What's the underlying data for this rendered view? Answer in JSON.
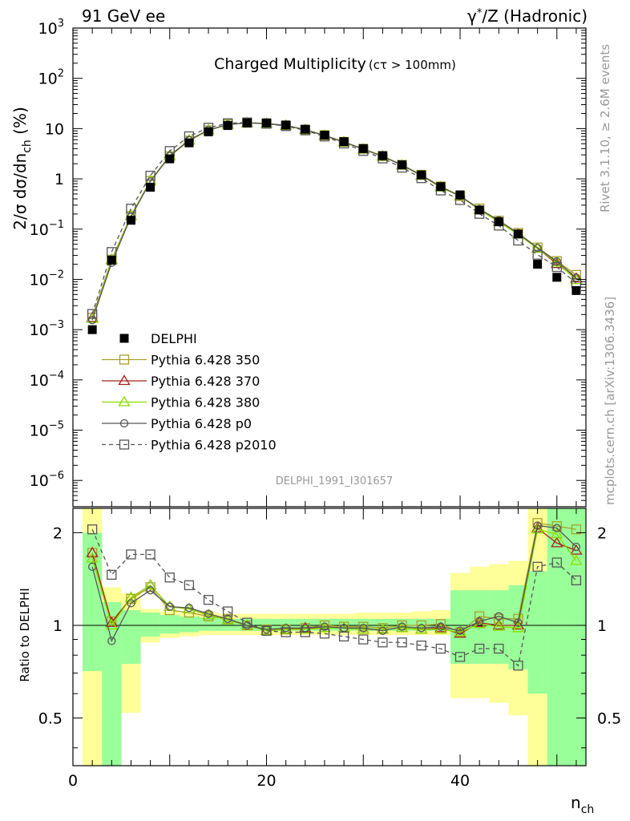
{
  "header": {
    "left": "91 GeV ee",
    "right_prefix": "γ",
    "right_sup": "*",
    "right_suffix": "/Z (Hadronic)"
  },
  "plot_title": {
    "main": "Charged Multiplicity",
    "cut": "(cτ > 100mm)"
  },
  "ylabel_main": {
    "prefix": "2/σ dσ/dn",
    "sub": "ch",
    "suffix": " (%)"
  },
  "ylabel_ratio": "Ratio to DELPHI",
  "xlabel": {
    "main": "n",
    "sub": "ch"
  },
  "analysis_id": "DELPHI_1991_I301657",
  "side_text": {
    "rivet": "Rivet 3.1.10, ≥ 2.6M events",
    "mcplots": "mcplots.cern.ch [arXiv:1306.3436]"
  },
  "y_ticks_main": [
    {
      "value": 1000,
      "base": "10",
      "exp": "3"
    },
    {
      "value": 100,
      "base": "10",
      "exp": "2"
    },
    {
      "value": 10,
      "base": "10",
      "exp": ""
    },
    {
      "value": 1,
      "base": "1",
      "exp": ""
    },
    {
      "value": 0.1,
      "base": "10",
      "exp": "−1"
    },
    {
      "value": 0.01,
      "base": "10",
      "exp": "−2"
    },
    {
      "value": 0.001,
      "base": "10",
      "exp": "−3"
    },
    {
      "value": 0.0001,
      "base": "10",
      "exp": "−4"
    },
    {
      "value": 1e-05,
      "base": "10",
      "exp": "−5"
    },
    {
      "value": 1e-06,
      "base": "10",
      "exp": "−6"
    }
  ],
  "y_ticks_ratio": [
    {
      "value": 2,
      "label": "2"
    },
    {
      "value": 1,
      "label": "1"
    },
    {
      "value": 0.5,
      "label": "0.5"
    }
  ],
  "x_ticks": [
    {
      "value": 0,
      "label": "0"
    },
    {
      "value": 20,
      "label": "20"
    },
    {
      "value": 40,
      "label": "40"
    }
  ],
  "chart_data": {
    "type": "line",
    "x_axis": {
      "label": "n_ch",
      "range": [
        0,
        53
      ]
    },
    "main_panel": {
      "scale": "log",
      "ylabel": "2/σ dσ/dn_ch (%)",
      "ylim": [
        3e-07,
        1000
      ]
    },
    "ratio_panel": {
      "scale": "log",
      "ylabel": "Ratio to DELPHI",
      "ylim": [
        0.35,
        2.4
      ]
    },
    "x": [
      2,
      4,
      6,
      8,
      10,
      12,
      14,
      16,
      18,
      20,
      22,
      24,
      26,
      28,
      30,
      32,
      34,
      36,
      38,
      40,
      42,
      44,
      46,
      48,
      50,
      52
    ],
    "legend_position": "middle-left",
    "data_series": {
      "name": "DELPHI",
      "values": [
        0.001,
        0.024,
        0.15,
        0.68,
        2.5,
        5.2,
        8.6,
        11.5,
        13.0,
        13.0,
        11.8,
        9.7,
        7.4,
        5.5,
        4.0,
        2.9,
        1.9,
        1.2,
        0.7,
        0.48,
        0.24,
        0.14,
        0.08,
        0.02,
        0.011,
        0.006
      ]
    },
    "band_edges": [
      1,
      3,
      5,
      7,
      9,
      11,
      13,
      15,
      17,
      19,
      21,
      23,
      25,
      27,
      29,
      31,
      33,
      35,
      37,
      39,
      41,
      43,
      45,
      47,
      49,
      51,
      53
    ],
    "band_green": [
      [
        0.71,
        2.0
      ],
      [
        0.3,
        1.19
      ],
      [
        0.75,
        1.12
      ],
      [
        0.92,
        1.1
      ],
      [
        0.94,
        1.08
      ],
      [
        0.95,
        1.07
      ],
      [
        0.96,
        1.06
      ],
      [
        0.96,
        1.05
      ],
      [
        0.96,
        1.05
      ],
      [
        0.96,
        1.05
      ],
      [
        0.96,
        1.05
      ],
      [
        0.96,
        1.05
      ],
      [
        0.96,
        1.05
      ],
      [
        0.96,
        1.05
      ],
      [
        0.96,
        1.05
      ],
      [
        0.96,
        1.05
      ],
      [
        0.96,
        1.05
      ],
      [
        0.96,
        1.05
      ],
      [
        0.96,
        1.05
      ],
      [
        0.75,
        1.3
      ],
      [
        0.75,
        1.3
      ],
      [
        0.75,
        1.3
      ],
      [
        0.72,
        1.35
      ],
      [
        0.6,
        1.5
      ],
      [
        0.3,
        2.8
      ],
      [
        0.3,
        2.8
      ]
    ],
    "band_yellow": [
      [
        0.3,
        2.8
      ],
      [
        0.3,
        1.33
      ],
      [
        0.52,
        1.27
      ],
      [
        0.88,
        1.13
      ],
      [
        0.91,
        1.11
      ],
      [
        0.92,
        1.1
      ],
      [
        0.93,
        1.1
      ],
      [
        0.93,
        1.09
      ],
      [
        0.93,
        1.09
      ],
      [
        0.93,
        1.09
      ],
      [
        0.93,
        1.09
      ],
      [
        0.93,
        1.09
      ],
      [
        0.93,
        1.09
      ],
      [
        0.93,
        1.09
      ],
      [
        0.93,
        1.1
      ],
      [
        0.93,
        1.1
      ],
      [
        0.93,
        1.1
      ],
      [
        0.93,
        1.11
      ],
      [
        0.93,
        1.12
      ],
      [
        0.58,
        1.48
      ],
      [
        0.58,
        1.55
      ],
      [
        0.56,
        1.58
      ],
      [
        0.51,
        1.62
      ],
      [
        0.3,
        2.8
      ],
      [
        0.3,
        2.8
      ],
      [
        0.3,
        2.8
      ]
    ],
    "series": [
      {
        "name": "Pythia 6.428 350",
        "color": "#a8a02a",
        "marker": "square-open",
        "dashed": false,
        "ratio": [
          1.72,
          1.03,
          1.22,
          1.33,
          1.12,
          1.1,
          1.07,
          1.05,
          1.0,
          0.97,
          0.97,
          0.98,
          1.0,
          0.99,
          0.99,
          0.98,
          1.0,
          1.0,
          1.01,
          0.95,
          1.07,
          1.05,
          1.05,
          2.15,
          2.1,
          2.05
        ]
      },
      {
        "name": "Pythia 6.428 370",
        "color": "#a81e1e",
        "marker": "triangle-open",
        "dashed": false,
        "ratio": [
          1.72,
          1.02,
          1.23,
          1.35,
          1.15,
          1.13,
          1.08,
          1.04,
          1.0,
          0.96,
          0.97,
          0.98,
          0.98,
          0.98,
          0.97,
          0.97,
          0.98,
          0.97,
          0.98,
          0.94,
          1.02,
          1.0,
          1.0,
          2.07,
          1.85,
          1.75
        ]
      },
      {
        "name": "Pythia 6.428 380",
        "color": "#88dd00",
        "marker": "triangle-open",
        "dashed": false,
        "ratio": [
          1.65,
          1.0,
          1.23,
          1.35,
          1.15,
          1.13,
          1.08,
          1.04,
          1.0,
          0.96,
          0.97,
          0.97,
          0.98,
          0.98,
          0.97,
          0.97,
          0.98,
          0.97,
          0.97,
          0.95,
          1.01,
          0.99,
          0.98,
          2.05,
          1.98,
          1.62
        ]
      },
      {
        "name": "Pythia 6.428 p0",
        "color": "#555555",
        "marker": "circle-open",
        "dashed": false,
        "ratio": [
          1.55,
          0.89,
          1.18,
          1.3,
          1.15,
          1.14,
          1.09,
          1.05,
          1.0,
          0.97,
          0.98,
          0.98,
          0.99,
          0.98,
          0.98,
          0.96,
          0.99,
          0.98,
          0.99,
          0.96,
          1.03,
          1.07,
          1.02,
          2.11,
          2.07,
          1.8
        ]
      },
      {
        "name": "Pythia 6.428 p2010",
        "color": "#555555",
        "marker": "square-open",
        "dashed": true,
        "ratio": [
          2.05,
          1.46,
          1.7,
          1.7,
          1.43,
          1.35,
          1.21,
          1.11,
          1.02,
          0.96,
          0.95,
          0.95,
          0.94,
          0.92,
          0.9,
          0.88,
          0.88,
          0.86,
          0.84,
          0.79,
          0.84,
          0.84,
          0.74,
          1.55,
          1.6,
          1.4
        ]
      }
    ]
  }
}
